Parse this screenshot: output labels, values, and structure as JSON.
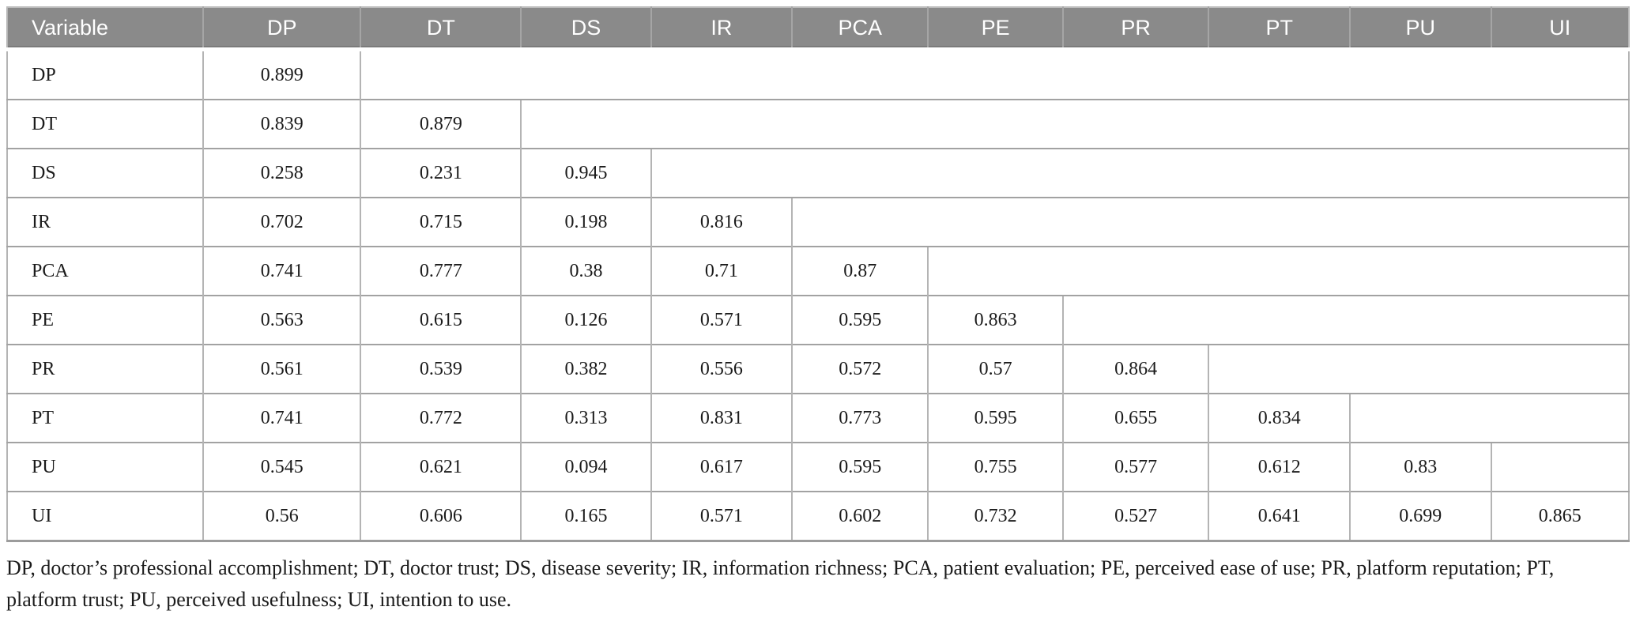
{
  "table": {
    "columns": [
      "Variable",
      "DP",
      "DT",
      "DS",
      "IR",
      "PCA",
      "PE",
      "PR",
      "PT",
      "PU",
      "UI"
    ],
    "rows": [
      {
        "label": "DP",
        "values": [
          "0.899"
        ]
      },
      {
        "label": "DT",
        "values": [
          "0.839",
          "0.879"
        ]
      },
      {
        "label": "DS",
        "values": [
          "0.258",
          "0.231",
          "0.945"
        ]
      },
      {
        "label": "IR",
        "values": [
          "0.702",
          "0.715",
          "0.198",
          "0.816"
        ]
      },
      {
        "label": "PCA",
        "values": [
          "0.741",
          "0.777",
          "0.38",
          "0.71",
          "0.87"
        ]
      },
      {
        "label": "PE",
        "values": [
          "0.563",
          "0.615",
          "0.126",
          "0.571",
          "0.595",
          "0.863"
        ]
      },
      {
        "label": "PR",
        "values": [
          "0.561",
          "0.539",
          "0.382",
          "0.556",
          "0.572",
          "0.57",
          "0.864"
        ]
      },
      {
        "label": "PT",
        "values": [
          "0.741",
          "0.772",
          "0.313",
          "0.831",
          "0.773",
          "0.595",
          "0.655",
          "0.834"
        ]
      },
      {
        "label": "PU",
        "values": [
          "0.545",
          "0.621",
          "0.094",
          "0.617",
          "0.595",
          "0.755",
          "0.577",
          "0.612",
          "0.83"
        ]
      },
      {
        "label": "UI",
        "values": [
          "0.56",
          "0.606",
          "0.165",
          "0.571",
          "0.602",
          "0.732",
          "0.527",
          "0.641",
          "0.699",
          "0.865"
        ]
      }
    ]
  },
  "footnote": "DP, doctor’s professional accomplishment; DT, doctor trust; DS, disease severity; IR, information richness; PCA, patient evaluation; PE, perceived ease of use; PR, platform reputation; PT, platform trust; PU, perceived usefulness; UI, intention to use.",
  "colors": {
    "header_bg": "#8a8a8a",
    "header_text": "#ffffff",
    "header_divider": "#a5a5a5",
    "row_divider": "#a2a2a2",
    "column_divider": "#b4b4b4",
    "body_text": "#1b1b1b"
  }
}
